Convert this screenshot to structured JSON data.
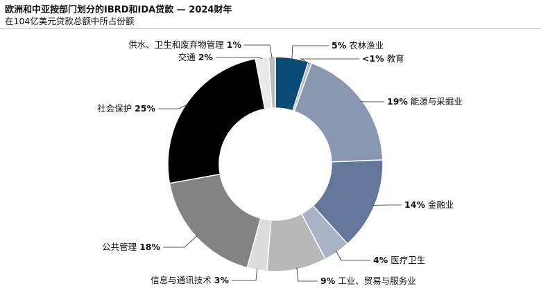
{
  "header": {
    "title": "欧洲和中亚按部门划分的IBRD和IDA贷款 — 2024财年",
    "subtitle": "在104亿美元贷款总额中所占份额"
  },
  "chart_data": {
    "type": "pie",
    "donut": true,
    "title": "欧洲和中亚按部门划分的IBRD和IDA贷款 — 2024财年",
    "subtitle": "在104亿美元贷款总额中所占份额",
    "slices": [
      {
        "name": "农林渔业",
        "value": 5,
        "pct_label": "5%",
        "color": "#0b4a74"
      },
      {
        "name": "教育",
        "value": 0.5,
        "pct_label": "<1%",
        "color": "#a9b6c8"
      },
      {
        "name": "能源与采掘业",
        "value": 19,
        "pct_label": "19%",
        "color": "#8a97b1"
      },
      {
        "name": "金融业",
        "value": 14,
        "pct_label": "14%",
        "color": "#64779a"
      },
      {
        "name": "医疗卫生",
        "value": 4,
        "pct_label": "4%",
        "color": "#aab2c6"
      },
      {
        "name": "工业、贸易与服务业",
        "value": 9,
        "pct_label": "9%",
        "color": "#b8b8b8"
      },
      {
        "name": "信息与通讯技术",
        "value": 3,
        "pct_label": "3%",
        "color": "#dcdcdc"
      },
      {
        "name": "公共管理",
        "value": 18,
        "pct_label": "18%",
        "color": "#838383"
      },
      {
        "name": "社会保护",
        "value": 25,
        "pct_label": "25%",
        "color": "#000000"
      },
      {
        "name": "交通",
        "value": 2,
        "pct_label": "2%",
        "color": "#e9e9e9"
      },
      {
        "name": "供水、卫生和废弃物管理",
        "value": 1,
        "pct_label": "1%",
        "color": "#bdbdbd"
      }
    ]
  }
}
